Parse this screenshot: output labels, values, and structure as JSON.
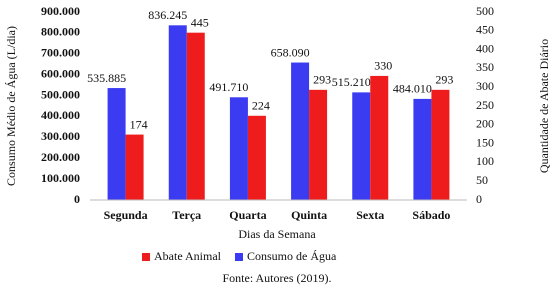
{
  "chart_data": {
    "type": "bar",
    "categories": [
      "Segunda",
      "Terça",
      "Quarta",
      "Quinta",
      "Sexta",
      "Sábado"
    ],
    "series": [
      {
        "name": "Consumo de Água",
        "color": "#3b3bf2",
        "values": [
          535885,
          836245,
          491710,
          658090,
          515210,
          484010
        ],
        "value_labels": [
          "535.885",
          "836.245",
          "491.710",
          "658.090",
          "515.210",
          "484.010"
        ]
      },
      {
        "name": "Abate Animal",
        "color": "#ee1c1c",
        "axis": "y2",
        "values": [
          174,
          445,
          224,
          293,
          330,
          293
        ]
      }
    ],
    "ylim": [
      0,
      900000
    ],
    "yticks": [
      0,
      {
        "value": 100000,
        "label": "100.000"
      },
      {
        "value": 200000,
        "label": "200.000"
      },
      {
        "value": 300000,
        "label": "300.000"
      },
      {
        "value": 400000,
        "label": "400.000"
      },
      {
        "value": 500000,
        "label": "500.000"
      },
      {
        "value": 600000,
        "label": "600.000"
      },
      {
        "value": 700000,
        "label": "700.000"
      },
      {
        "value": 800000,
        "label": "800.000"
      },
      {
        "value": 900000,
        "label": "900.000"
      }
    ],
    "y2lim": [
      0,
      500
    ],
    "y2ticks": [
      0,
      50,
      100,
      150,
      200,
      250,
      300,
      350,
      400,
      450,
      500
    ],
    "x_label": "Dias da Semana",
    "y_label": "Consumo Médio de Água (L/dia)",
    "y2_label": "Quantidade de Abate Diário",
    "source": "Fonte: Autores (2019).",
    "grid": false
  }
}
